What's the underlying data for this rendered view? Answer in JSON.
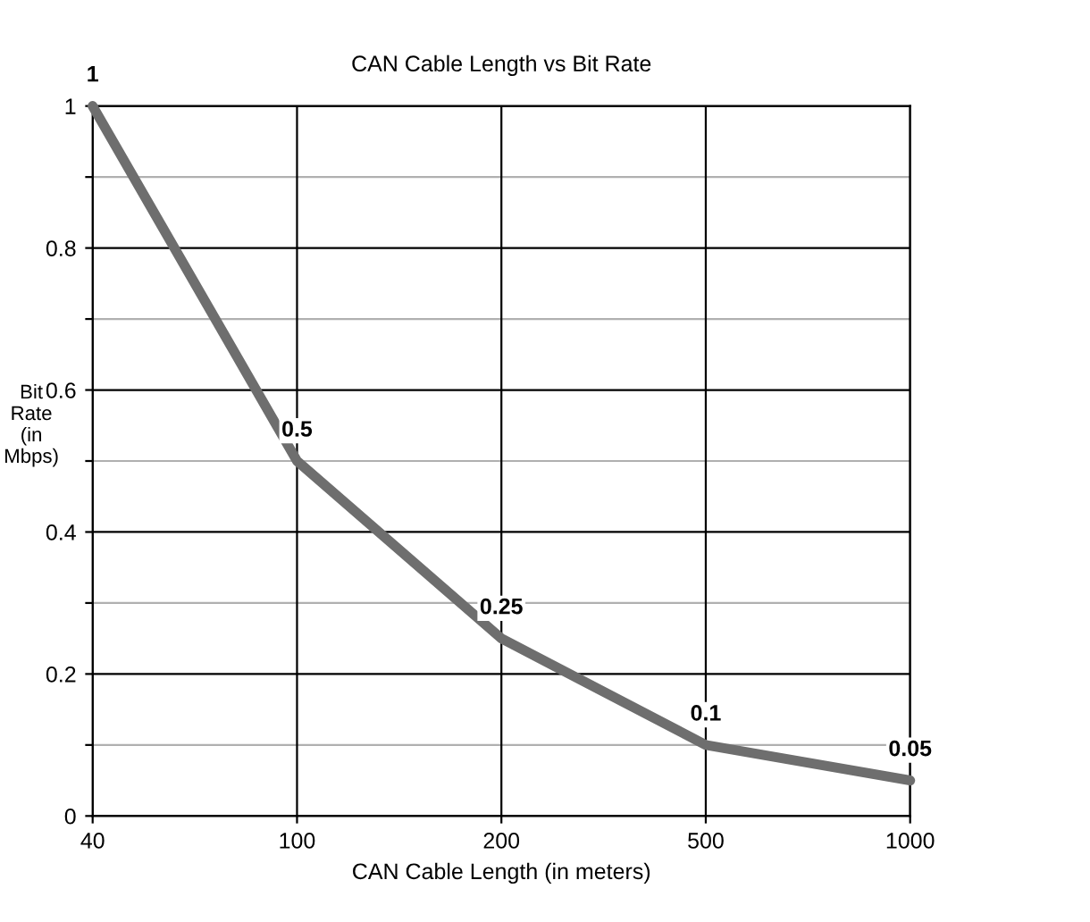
{
  "chart_data": {
    "type": "line",
    "title": "CAN Cable Length vs Bit Rate",
    "xlabel": "CAN Cable Length (in meters)",
    "ylabel": "Bit Rate (in Mbps)",
    "categories": [
      "40",
      "100",
      "200",
      "500",
      "1000"
    ],
    "series": [
      {
        "color": "#6e6e6e",
        "values": [
          1,
          0.5,
          0.25,
          0.1,
          0.05
        ]
      }
    ],
    "ylim": [
      0,
      1
    ],
    "yticks": [
      0,
      {
        "value": 0.1,
        "label": null
      },
      0.2,
      {
        "value": 0.3,
        "label": null
      },
      0.4,
      {
        "value": 0.5,
        "label": null
      },
      0.6,
      {
        "value": 0.7,
        "label": null
      },
      0.8,
      {
        "value": 0.9,
        "label": null
      },
      1
    ],
    "grid": true,
    "data_labels": true,
    "marker": "none",
    "line_style": "solid"
  }
}
